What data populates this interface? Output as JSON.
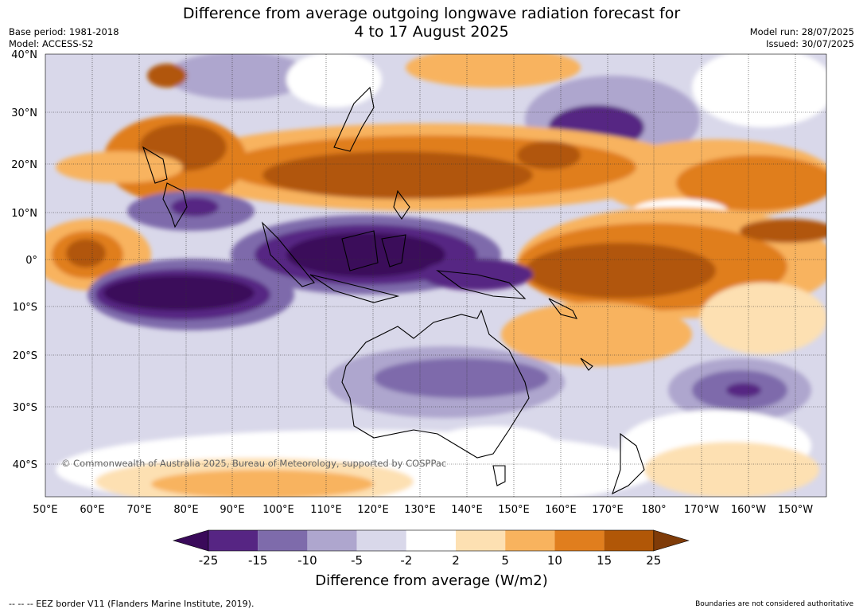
{
  "title_line1": "Difference from average outgoing longwave radiation forecast for",
  "title_line2": "4 to 17 August 2025",
  "base_period": "Base period: 1981-2018",
  "model": "Model: ACCESS-S2",
  "model_run": "Model run: 28/07/2025",
  "issued": "Issued: 30/07/2025",
  "copyright": "© Commonwealth of Australia 2025, Bureau of Meteorology, supported by COSPPac",
  "lat_labels": [
    "40°N",
    "30°N",
    "20°N",
    "10°N",
    "0°",
    "10°S",
    "20°S",
    "30°S",
    "40°S"
  ],
  "lon_labels": [
    "50°E",
    "60°E",
    "70°E",
    "80°E",
    "90°E",
    "100°E",
    "110°E",
    "120°E",
    "130°E",
    "140°E",
    "150°E",
    "160°E",
    "170°E",
    "180°",
    "170°W",
    "160°W",
    "150°W"
  ],
  "colorbar": {
    "labels": [
      "-25",
      "-15",
      "-10",
      "-5",
      "-2",
      "2",
      "5",
      "10",
      "15",
      "25"
    ],
    "colors": [
      "#3a0a5a",
      "#562583",
      "#7e6bab",
      "#aea6ce",
      "#d9d8ea",
      "#ffffff",
      "#fde0b2",
      "#f8b35e",
      "#e07e1e",
      "#b15707",
      "#7f3b08"
    ],
    "title": "Difference from average (W/m2)"
  },
  "footer_left": "--  --  -- EEZ border V11 (Flanders Marine Institute, 2019).",
  "footer_right": "Boundaries are not considered authoritative"
}
